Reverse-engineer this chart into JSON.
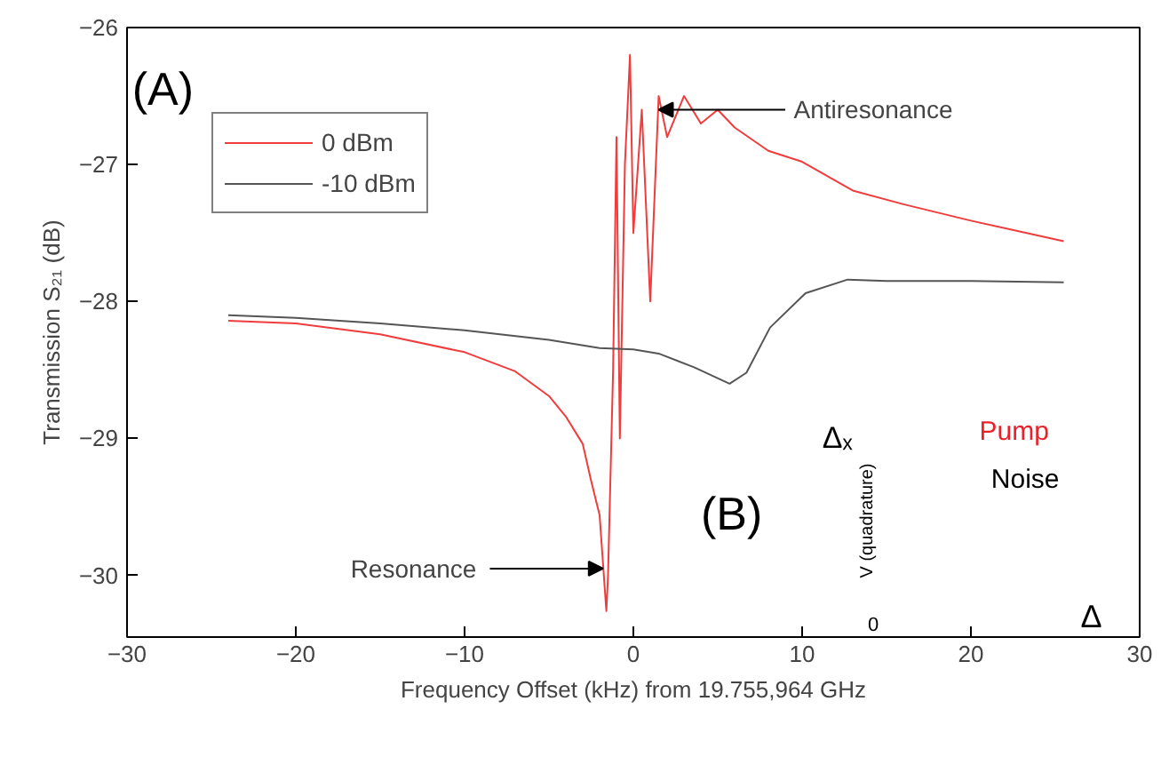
{
  "chart_data": {
    "type": "line",
    "xlabel": "Frequency Offset (kHz) from 19.755,964 GHz",
    "ylabel": "Transmission S₂₁ (dB)",
    "xlim": [
      -30,
      30
    ],
    "ylim": [
      -30.45,
      -26
    ],
    "xticks": [
      -30,
      -20,
      -10,
      0,
      10,
      20,
      30
    ],
    "yticks": [
      -30,
      -29,
      -28,
      -27,
      -26
    ],
    "grid": false,
    "legend": "top left",
    "series": [
      {
        "name": "0 dBm",
        "color": "#f03c3c",
        "x": [
          -24,
          -20,
          -15,
          -10,
          -7,
          -5,
          -4,
          -3,
          -2.5,
          -2,
          -1.6,
          -1.5,
          -1.2,
          -1.0,
          -0.8,
          -0.5,
          -0.2,
          0,
          0.5,
          1,
          1.5,
          2,
          3,
          4,
          5,
          6,
          8,
          10,
          13,
          16,
          20,
          25.5
        ],
        "values": [
          -28.14,
          -28.16,
          -28.24,
          -28.37,
          -28.51,
          -28.69,
          -28.84,
          -29.04,
          -29.31,
          -29.56,
          -30.26,
          -30.0,
          -28.5,
          -26.8,
          -29.0,
          -27.0,
          -26.2,
          -27.5,
          -26.6,
          -28.0,
          -26.5,
          -26.8,
          -26.5,
          -26.7,
          -26.6,
          -26.73,
          -26.9,
          -26.98,
          -27.19,
          -27.29,
          -27.41,
          -27.56
        ]
      },
      {
        "name": "-10 dBm",
        "color": "#555555",
        "x": [
          -24,
          -20,
          -15,
          -10,
          -5,
          -2,
          0,
          1.5,
          3.6,
          5.7,
          6.7,
          8.1,
          10.2,
          12.7,
          15,
          20,
          25.5
        ],
        "values": [
          -28.1,
          -28.12,
          -28.16,
          -28.21,
          -28.28,
          -28.34,
          -28.35,
          -28.38,
          -28.48,
          -28.6,
          -28.52,
          -28.19,
          -27.94,
          -27.84,
          -27.85,
          -27.85,
          -27.86
        ]
      }
    ],
    "annotations": [
      {
        "text": "Antiresonance",
        "x": 1.5,
        "y": -26.6
      },
      {
        "text": "Resonance",
        "x": -1.8,
        "y": -29.95
      },
      {
        "text": "(A)"
      },
      {
        "text": "(B)"
      },
      {
        "text": "V (quadrature)"
      },
      {
        "text": "0"
      },
      {
        "text": "Δₓ"
      },
      {
        "text": "Pump"
      },
      {
        "text": "Noise"
      },
      {
        "text": "Δ"
      }
    ]
  }
}
